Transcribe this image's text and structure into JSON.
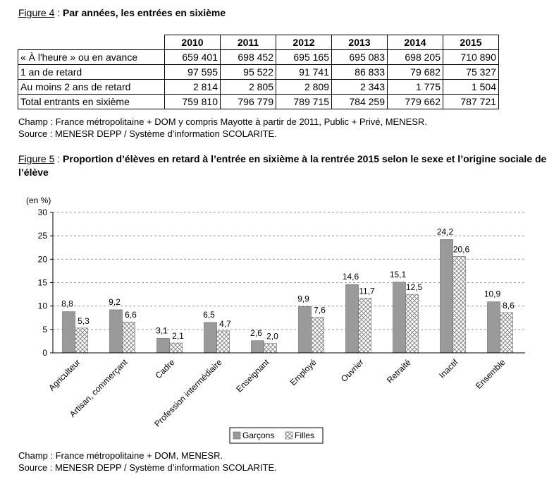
{
  "figure4": {
    "label": "Figure 4",
    "sep": " : ",
    "title": "Par années, les entrées en sixième",
    "years": [
      "2010",
      "2011",
      "2012",
      "2013",
      "2014",
      "2015"
    ],
    "rows": [
      {
        "label": "« À l'heure » ou en avance",
        "values": [
          "659 401",
          "698 452",
          "695 165",
          "695 083",
          "698 205",
          "710 890"
        ]
      },
      {
        "label": "1 an de retard",
        "values": [
          "97 595",
          "95 522",
          "91 741",
          "86 833",
          "79 682",
          "75 327"
        ]
      },
      {
        "label": "Au moins 2 ans de retard",
        "values": [
          "2 814",
          "2 805",
          "2 809",
          "2 343",
          "1 775",
          "1 504"
        ]
      },
      {
        "label": "Total entrants en sixième",
        "values": [
          "759 810",
          "796 779",
          "789 715",
          "784 259",
          "779 662",
          "787 721"
        ]
      }
    ],
    "champ": "Champ : France métropolitaine + DOM y compris Mayotte à partir de 2011, Public + Privé, MENESR.",
    "source": "Source : MENESR DEPP / Système d’information SCOLARITE."
  },
  "figure5": {
    "label": "Figure 5",
    "sep": " : ",
    "title": "Proportion d’élèves en retard à l’entrée en sixième à la rentrée 2015 selon le sexe et l’origine sociale de l’élève",
    "champ": "Champ : France métropolitaine + DOM, MENESR.",
    "source": "Source : MENESR DEPP / Système d’information SCOLARITE."
  },
  "chart_data": {
    "type": "bar",
    "ylabel": "(en %)",
    "ylim": [
      0,
      30
    ],
    "yticks": [
      0,
      5,
      10,
      15,
      20,
      25,
      30
    ],
    "ytick_labels": [
      "0",
      "5",
      "10",
      "15",
      "20",
      "25",
      "30"
    ],
    "grid": true,
    "legend_position": "bottom-center",
    "categories": [
      "Agriculteur",
      "Artisan, commerçant",
      "Cadre",
      "Profession intermédiaire",
      "Enseignant",
      "Employé",
      "Ouvrier",
      "Retraité",
      "Inactif",
      "Ensemble"
    ],
    "series": [
      {
        "name": "Garçons",
        "color": "#9a9a9a",
        "pattern": "solid",
        "values": [
          8.8,
          9.2,
          3.1,
          6.5,
          2.6,
          9.9,
          14.6,
          15.1,
          24.2,
          10.9
        ],
        "labels": [
          "8,8",
          "9,2",
          "3,1",
          "6,5",
          "2,6",
          "9,9",
          "14,6",
          "15,1",
          "24,2",
          "10,9"
        ]
      },
      {
        "name": "Filles",
        "color": "#ffffff",
        "pattern": "crosshatch",
        "values": [
          5.3,
          6.6,
          2.1,
          4.7,
          2.0,
          7.6,
          11.7,
          12.5,
          20.6,
          8.6
        ],
        "labels": [
          "5,3",
          "6,6",
          "2,1",
          "4,7",
          "2,0",
          "7,6",
          "11,7",
          "12,5",
          "20,6",
          "8,6"
        ]
      }
    ]
  }
}
